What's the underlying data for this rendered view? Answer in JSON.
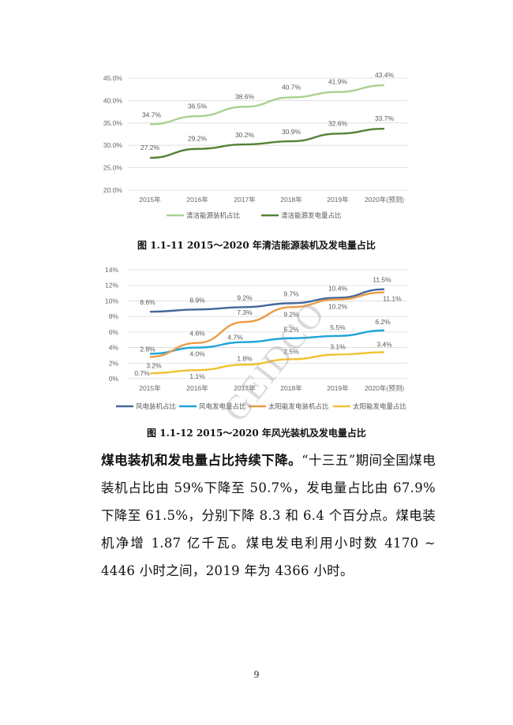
{
  "page": {
    "number": "9",
    "watermark": "GEIDCO"
  },
  "figure1": {
    "caption": "图 1.1-11 2015～2020 年清洁能源装机及发电量占比",
    "legend": [
      "清洁能源装机占比",
      "清洁能源发电量占比"
    ],
    "colors": [
      "#a9d18e",
      "#548235"
    ]
  },
  "figure2": {
    "caption": "图 1.1-12 2015～2020 年风光装机及发电量占比",
    "legend": [
      "风电装机占比",
      "风电发电量占比",
      "太阳能发电装机占比",
      "太阳能发电量占比"
    ],
    "colors": [
      "#44689b",
      "#1ea4d8",
      "#ed9b45",
      "#f2c12e"
    ]
  },
  "chart_data": [
    {
      "type": "line",
      "title": "图 1.1-11 2015～2020 年清洁能源装机及发电量占比",
      "categories": [
        "2015年",
        "2016年",
        "2017年",
        "2018年",
        "2019年",
        "2020年(预测)"
      ],
      "series": [
        {
          "name": "清洁能源装机占比",
          "values": [
            34.7,
            36.5,
            38.6,
            40.7,
            41.9,
            43.4
          ],
          "labels": [
            "34.7%",
            "36.5%",
            "38.6%",
            "40.7%",
            "41.9%",
            "43.4%"
          ]
        },
        {
          "name": "清洁能源发电量占比",
          "values": [
            27.2,
            29.2,
            30.2,
            30.9,
            32.6,
            33.7
          ],
          "labels": [
            "27.2%",
            "29.2%",
            "30.2%",
            "30.9%",
            "32.6%",
            "33.7%"
          ]
        }
      ],
      "yticks": [
        "20.0%",
        "25.0%",
        "30.0%",
        "35.0%",
        "40.0%",
        "45.0%"
      ],
      "ylim": [
        20,
        45
      ],
      "xlabel": "",
      "ylabel": "",
      "grid": true,
      "legend_position": "bottom"
    },
    {
      "type": "line",
      "title": "图 1.1-12 2015～2020 年风光装机及发电量占比",
      "categories": [
        "2015年",
        "2016年",
        "2017年",
        "2018年",
        "2019年",
        "2020年(预测)"
      ],
      "series": [
        {
          "name": "风电装机占比",
          "values": [
            8.6,
            8.9,
            9.2,
            9.7,
            10.4,
            11.5
          ],
          "labels": [
            "8.6%",
            "8.9%",
            "9.2%",
            "9.7%",
            "10.4%",
            "11.5%"
          ]
        },
        {
          "name": "风电发电量占比",
          "values": [
            3.2,
            4.0,
            4.7,
            5.2,
            5.5,
            6.2
          ],
          "labels": [
            "3.2%",
            "4.0%",
            "4.7%",
            "5.2%",
            "5.5%",
            "6.2%"
          ]
        },
        {
          "name": "太阳能发电装机占比",
          "values": [
            2.8,
            4.6,
            7.3,
            9.2,
            10.2,
            11.1
          ],
          "labels": [
            "2.8%",
            "4.6%",
            "7.3%",
            "9.2%",
            "10.2%",
            "11.1%"
          ]
        },
        {
          "name": "太阳能发电量占比",
          "values": [
            0.7,
            1.1,
            1.8,
            2.5,
            3.1,
            3.4
          ],
          "labels": [
            "0.7%",
            "1.1%",
            "1.8%",
            "2.5%",
            "3.1%",
            "3.4%"
          ]
        }
      ],
      "yticks": [
        "0%",
        "2%",
        "4%",
        "6%",
        "8%",
        "10%",
        "12%",
        "14%"
      ],
      "ylim": [
        0,
        14
      ],
      "xlabel": "",
      "ylabel": "",
      "grid": true,
      "legend_position": "bottom"
    }
  ],
  "body": {
    "lead": "煤电装机和发电量占比持续下降。",
    "text": "“十三五”期间全国煤电装机占比由 59%下降至 50.7%，发电量占比由 67.9%下降至 61.5%，分别下降 8.3 和 6.4 个百分点。煤电装机净增 1.87 亿千瓦。煤电发电利用小时数 4170 ~ 4446 小时之间，2019 年为 4366 小时。"
  }
}
